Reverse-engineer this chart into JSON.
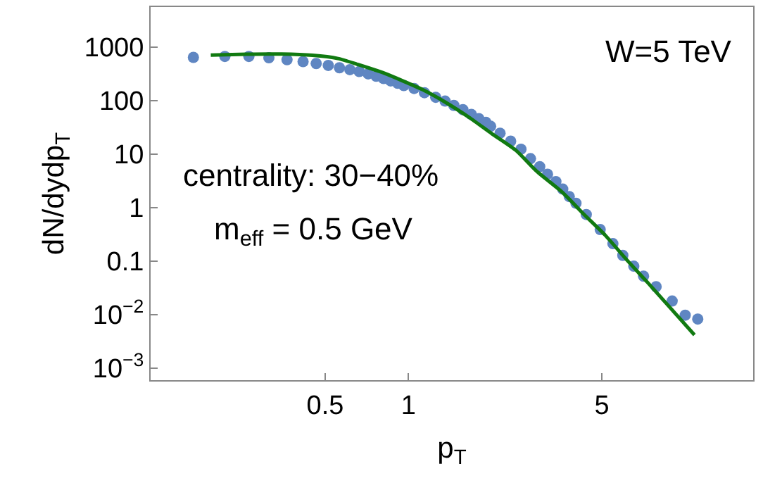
{
  "chart_data": {
    "type": "scatter",
    "xlabel": "p$_{T}$",
    "ylabel": "dN/dydp$_{T}$",
    "log": "xy",
    "xlim": [
      0.117,
      17.6
    ],
    "xticks": [
      0.5,
      1,
      5
    ],
    "ylim": [
      0.00059,
      5600
    ],
    "yticks": [
      1000,
      100,
      10,
      1,
      0.1,
      {
        "value": 0.01,
        "label": "10$^{−2}$"
      },
      {
        "value": 0.001,
        "label": "10$^{−3}$"
      }
    ],
    "annotations": [
      "W=5 TeV",
      "centrality: 30−40%",
      "m$_{eff}$ = 0.5 GeV"
    ],
    "series": [
      {
        "marker": "circle",
        "color": "#5f86c2",
        "x": [
          0.167,
          0.217,
          0.265,
          0.313,
          0.364,
          0.416,
          0.464,
          0.513,
          0.563,
          0.614,
          0.664,
          0.715,
          0.764,
          0.813,
          0.862,
          0.914,
          0.962,
          1.048,
          1.142,
          1.254,
          1.356,
          1.459,
          1.573,
          1.687,
          1.796,
          1.905,
          1.981,
          2.142,
          2.34,
          2.55,
          2.76,
          2.98,
          3.18,
          3.41,
          3.61,
          3.81,
          4.03,
          4.39,
          4.93,
          5.48,
          5.95,
          6.52,
          7.07,
          7.85,
          8.97,
          10.0,
          11.1
        ],
        "values": [
          641,
          667,
          667,
          629,
          580,
          534,
          492,
          454,
          410,
          378,
          349,
          315,
          285,
          258,
          233,
          210,
          190,
          168,
          140,
          115,
          97.5,
          81,
          67.6,
          55,
          46,
          39,
          33,
          24.5,
          17.4,
          12.3,
          8.2,
          5.8,
          4.2,
          3.05,
          2.21,
          1.6,
          1.2,
          0.74,
          0.387,
          0.211,
          0.127,
          0.08,
          0.052,
          0.033,
          0.0178,
          0.0097,
          0.0082
        ]
      },
      {
        "type": "line",
        "marker": "none",
        "line_style": "solid",
        "color": "#117a11",
        "x": [
          0.193,
          0.26,
          0.348,
          0.45,
          0.556,
          0.65,
          0.823,
          0.95,
          1.124,
          1.35,
          1.66,
          2.0,
          2.45,
          2.9,
          3.62,
          4.3,
          5.14,
          6.2,
          7.3,
          8.7,
          10.8
        ],
        "values": [
          708,
          735,
          738,
          700,
          610,
          480,
          320,
          235,
          160,
          95,
          48,
          24,
          11.6,
          4.8,
          1.87,
          0.75,
          0.303,
          0.1,
          0.04,
          0.0145,
          0.00414
        ]
      }
    ]
  }
}
